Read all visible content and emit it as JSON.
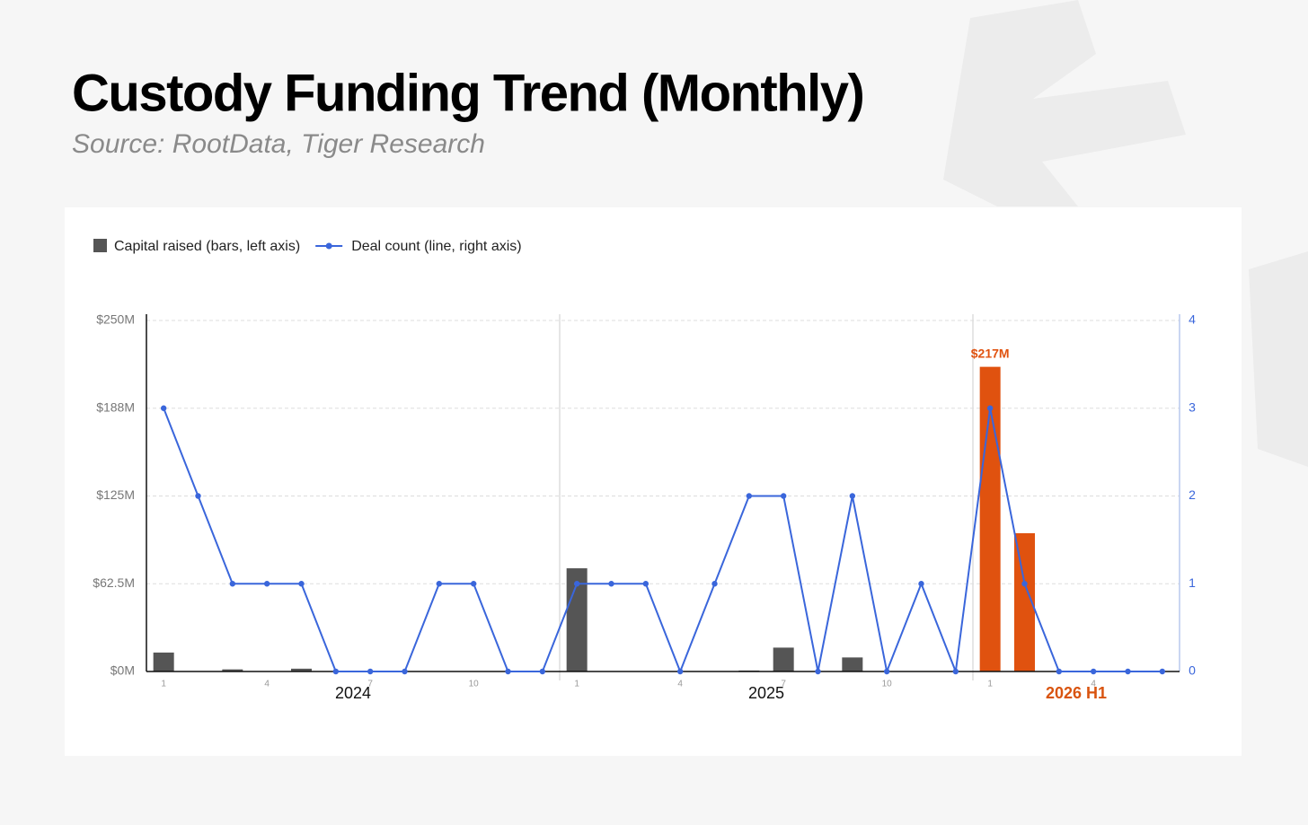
{
  "chart_data": {
    "type": "bar-line",
    "title": "Custody Funding Trend (Monthly)",
    "subtitle": "Source: RootData, Tiger Research",
    "categories": [
      "1",
      null,
      null,
      "4",
      null,
      null,
      "7",
      null,
      null,
      "10",
      null,
      null,
      "1",
      null,
      null,
      "4",
      null,
      null,
      "7",
      null,
      null,
      "10",
      null,
      null,
      "1",
      null,
      null,
      "4",
      null,
      null
    ],
    "groups": [
      "2024",
      "2025",
      "2026 H1"
    ],
    "group_colors": [
      "#111111",
      "#111111",
      "#d9540f"
    ],
    "series": [
      {
        "name": "Capital raised (bars, left axis)",
        "kind": "bar",
        "color": "#555555",
        "colors": [
          "#555555",
          "#555555",
          "#555555",
          "#555555",
          "#555555",
          "#555555",
          "#555555",
          "#555555",
          "#555555",
          "#555555",
          "#555555",
          "#555555",
          "#555555",
          "#555555",
          "#555555",
          "#555555",
          "#555555",
          "#555555",
          "#555555",
          "#555555",
          "#555555",
          "#555555",
          "#555555",
          "#555555",
          "#e0520f",
          "#e0520f",
          "#e0520f",
          "#e0520f",
          "#e0520f",
          "#e0520f"
        ],
        "values": [
          13.5,
          0,
          1.5,
          0,
          2,
          0,
          0,
          0,
          0,
          0,
          0,
          0,
          73.5,
          0,
          0,
          0,
          0,
          0.7,
          17,
          0,
          10,
          0,
          0,
          0,
          217,
          98.5,
          0,
          0,
          0,
          0
        ],
        "value_labels": [
          null,
          null,
          null,
          null,
          null,
          null,
          null,
          null,
          null,
          null,
          null,
          null,
          null,
          null,
          null,
          null,
          null,
          null,
          null,
          null,
          null,
          null,
          null,
          null,
          "$217M",
          null,
          null,
          null,
          null,
          null
        ]
      },
      {
        "name": "Deal count (line, right axis)",
        "kind": "line",
        "axis": "y2",
        "color": "#3a66db",
        "values": [
          3,
          2,
          1,
          1,
          1,
          0,
          0,
          0,
          1,
          1,
          0,
          0,
          1,
          1,
          1,
          0,
          1,
          2,
          2,
          0,
          2,
          0,
          1,
          0,
          3,
          1,
          0,
          0,
          0,
          0
        ]
      }
    ],
    "ylim": [
      0,
      250
    ],
    "yticks": [
      {
        "value": 0,
        "label": "$0M"
      },
      {
        "value": 62.5,
        "label": "$62.5M"
      },
      {
        "value": 125,
        "label": "$125M"
      },
      {
        "value": 187.5,
        "label": "$188M"
      },
      {
        "value": 250,
        "label": "$250M"
      }
    ],
    "y2lim": [
      0,
      4
    ],
    "y2ticks": [
      0,
      1,
      2,
      3,
      4
    ],
    "grid": true,
    "legend": "top-left"
  }
}
